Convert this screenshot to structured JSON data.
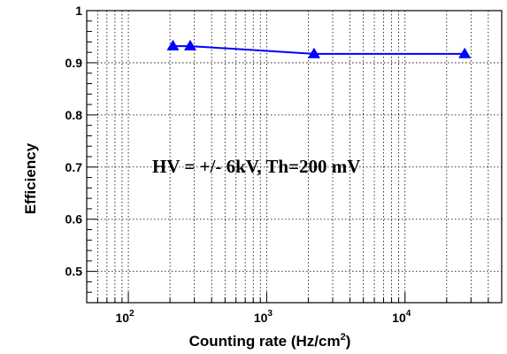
{
  "chart_data": {
    "type": "scatter",
    "title": "",
    "xlabel": "Counting rate (Hz/cm",
    "xlabel_sup": "2",
    "xlabel_suffix": ")",
    "ylabel": "Efficiency",
    "x_scale": "log",
    "xlim": [
      50,
      50000
    ],
    "ylim": [
      0.44,
      1.0
    ],
    "grid": true,
    "legend": "none",
    "x_ticks": [
      {
        "base": "10",
        "exp": "2",
        "value": 100
      },
      {
        "base": "10",
        "exp": "3",
        "value": 1000
      },
      {
        "base": "10",
        "exp": "4",
        "value": 10000
      }
    ],
    "y_ticks": [
      {
        "label": "0.5",
        "value": 0.5
      },
      {
        "label": "0.6",
        "value": 0.6
      },
      {
        "label": "0.7",
        "value": 0.7
      },
      {
        "label": "0.8",
        "value": 0.8
      },
      {
        "label": "0.9",
        "value": 0.9
      },
      {
        "label": "1",
        "value": 1.0
      }
    ],
    "series": [
      {
        "color": "#0000ff",
        "marker": "triangle-up",
        "connected": true,
        "x": [
          210,
          280,
          2200,
          27000
        ],
        "y": [
          0.932,
          0.932,
          0.917,
          0.917
        ]
      }
    ],
    "annotation": "HV = +/- 6kV, Th=200 mV"
  }
}
